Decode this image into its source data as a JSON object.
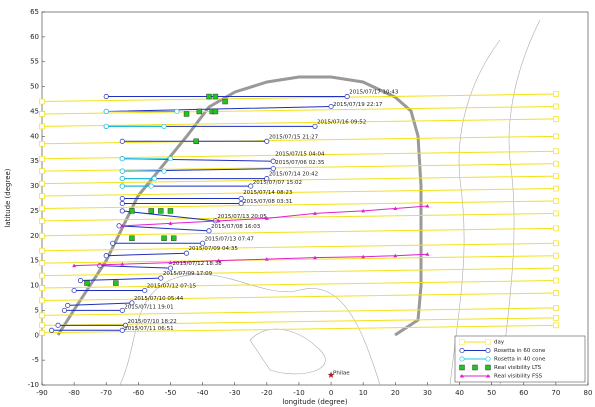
{
  "chart_data": {
    "type": "line",
    "xlabel": "longitude (degree)",
    "ylabel": "latitude (degree)",
    "xlim": [
      -90,
      80
    ],
    "ylim": [
      -10,
      65
    ],
    "xticks": [
      -90,
      -80,
      -70,
      -60,
      -50,
      -40,
      -30,
      -20,
      -10,
      0,
      10,
      20,
      30,
      40,
      50,
      60,
      70,
      80
    ],
    "yticks": [
      -10,
      -5,
      0,
      5,
      10,
      15,
      20,
      25,
      30,
      35,
      40,
      45,
      50,
      55,
      60,
      65
    ],
    "legend": "lower right",
    "series": [
      {
        "name": "day",
        "color": "#f2e21a",
        "marker": "square",
        "line": true,
        "x": [
          -90,
          70,
          null,
          -90,
          70,
          null,
          -90,
          70,
          null,
          -90,
          70,
          null,
          -90,
          70,
          null,
          -90,
          70,
          null,
          -90,
          70,
          null,
          -90,
          70,
          null,
          -90,
          70,
          null,
          -90,
          70,
          null,
          -90,
          70,
          null,
          -90,
          70,
          null,
          -90,
          70,
          null,
          -90,
          70,
          null,
          -90,
          70,
          null,
          -90,
          70,
          null,
          -90,
          70,
          null,
          -90,
          70,
          null,
          -90,
          70
        ],
        "values": [
          47,
          48.5,
          null,
          44.5,
          46,
          null,
          42,
          43.5,
          null,
          38.5,
          40,
          null,
          35.5,
          37,
          null,
          33,
          34.5,
          null,
          30.5,
          32,
          null,
          28,
          29.5,
          null,
          25.5,
          27,
          null,
          23,
          24.5,
          null,
          20,
          21.5,
          null,
          17,
          18.5,
          null,
          14.5,
          16,
          null,
          12,
          13.5,
          null,
          9.5,
          11,
          null,
          7,
          8.5,
          null,
          4,
          5.5,
          null,
          2,
          3.5,
          null,
          0.5,
          2
        ]
      },
      {
        "name": "Rosetta in 60 cone",
        "color": "#1f2fbf",
        "marker": "circle",
        "line": true,
        "x": [
          -70,
          5,
          null,
          -70,
          0,
          null,
          -70,
          -5,
          null,
          -65,
          -20,
          null,
          -65,
          -18,
          null,
          -65,
          -18,
          null,
          -65,
          -20,
          null,
          -65,
          -25,
          null,
          -65,
          -28,
          null,
          -65,
          -28,
          null,
          -65,
          -36,
          null,
          -66,
          -38,
          null,
          -68,
          -40,
          null,
          -70,
          -45,
          null,
          -72,
          -50,
          null,
          -78,
          -53,
          null,
          -80,
          -58,
          null,
          -82,
          -62,
          null,
          -83,
          -65,
          null,
          -85,
          -64,
          null,
          -87,
          -65
        ],
        "values": [
          48,
          48,
          null,
          45,
          46,
          null,
          42,
          42,
          null,
          39,
          39,
          null,
          35.5,
          35,
          null,
          33,
          33.5,
          null,
          31.5,
          31.5,
          null,
          30,
          30,
          null,
          27.5,
          27.5,
          null,
          26.5,
          26.5,
          null,
          25,
          23,
          null,
          22,
          21,
          null,
          18.5,
          18.5,
          null,
          16,
          16.5,
          null,
          14,
          13.5,
          null,
          11,
          11.5,
          null,
          9,
          9,
          null,
          6,
          6.5,
          null,
          5,
          5,
          null,
          2,
          2,
          null,
          1,
          1
        ]
      },
      {
        "name": "Rosetta in 40 cone",
        "color": "#19c8e6",
        "marker": "circle",
        "line": true,
        "x": [
          -70,
          -48,
          null,
          -70,
          -52,
          null,
          -65,
          -50,
          null,
          -65,
          -52,
          null,
          -65,
          -55,
          null,
          -65,
          -56
        ],
        "values": [
          45,
          45,
          null,
          42,
          42,
          null,
          35.5,
          35.5,
          null,
          33,
          33,
          null,
          31.5,
          31.5,
          null,
          30,
          30
        ]
      },
      {
        "name": "Real visibility LTS",
        "color": "#22c422",
        "marker": "square",
        "line": false,
        "x": [
          -38,
          -36,
          -33,
          -45,
          -41,
          -37,
          -36,
          -42,
          -62,
          -56,
          -53,
          -50,
          -62,
          -52,
          -49,
          -76,
          -67
        ],
        "values": [
          48,
          48,
          47,
          44.5,
          45,
          45,
          45,
          39,
          25,
          25,
          25,
          25,
          19.5,
          19.5,
          19.5,
          10.5,
          10.5
        ]
      },
      {
        "name": "Real visibility FSS",
        "color": "#e020d0",
        "marker": "triangle",
        "line": true,
        "x": [
          -65,
          -50,
          -35,
          -20,
          -5,
          10,
          20,
          30,
          null,
          -80,
          -65,
          -50,
          -35,
          -20,
          -5,
          10,
          20,
          30
        ],
        "values": [
          22,
          22.5,
          23,
          23.5,
          24.5,
          25,
          25.5,
          26,
          null,
          14,
          14.3,
          14.6,
          15,
          15.3,
          15.6,
          15.8,
          16,
          16.3
        ]
      }
    ],
    "annotations": [
      {
        "text": "2015/07/17 10:43",
        "x": 5,
        "y": 48.5
      },
      {
        "text": "2015/07/19 22:17",
        "x": 0,
        "y": 46
      },
      {
        "text": "2015/07/16 09:52",
        "x": -5,
        "y": 42.5
      },
      {
        "text": "2015/07/15 21:27",
        "x": -20,
        "y": 39.5
      },
      {
        "text": "2015/07/15 04:04",
        "x": -18,
        "y": 36
      },
      {
        "text": "2015/07/06 02:35",
        "x": -18,
        "y": 34.3
      },
      {
        "text": "2015/07/14 20:42",
        "x": -20,
        "y": 32
      },
      {
        "text": "2015/07/07 15:02",
        "x": -25,
        "y": 30.3
      },
      {
        "text": "2015/07/14 08:23",
        "x": -28,
        "y": 28.3
      },
      {
        "text": "2015/07/08 03:31",
        "x": -28,
        "y": 26.5
      },
      {
        "text": "2015/07/13 20:05",
        "x": -36,
        "y": 23.5
      },
      {
        "text": "2015/07/08 16:03",
        "x": -38,
        "y": 21.5
      },
      {
        "text": "2015/07/13 07:47",
        "x": -40,
        "y": 19
      },
      {
        "text": "2015/07/09 04:35",
        "x": -45,
        "y": 17
      },
      {
        "text": "2015/07/12 18:38",
        "x": -50,
        "y": 14
      },
      {
        "text": "2015/07/09 17:09",
        "x": -53,
        "y": 12
      },
      {
        "text": "2015/07/12 07:15",
        "x": -58,
        "y": 9.5
      },
      {
        "text": "2015/07/10 05:44",
        "x": -62,
        "y": 7
      },
      {
        "text": "2015/07/11 19:01",
        "x": -65,
        "y": 5.3
      },
      {
        "text": "2015/07/10 18:22",
        "x": -64,
        "y": 2.4
      },
      {
        "text": "2015/07/11 06:51",
        "x": -65,
        "y": 1
      },
      {
        "text": "Philae",
        "x": 0,
        "y": -8
      }
    ],
    "point": {
      "x": 0,
      "y": -8,
      "color": "#a02020"
    }
  }
}
